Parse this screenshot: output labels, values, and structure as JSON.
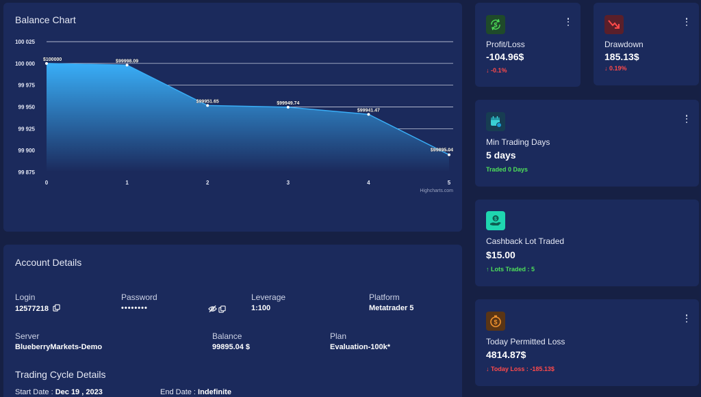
{
  "balance_chart": {
    "title": "Balance Chart",
    "credit": "Highcharts.com"
  },
  "chart_data": {
    "type": "area",
    "x": [
      0,
      1,
      2,
      3,
      4,
      5
    ],
    "values": [
      100000,
      99998.09,
      99951.65,
      99949.74,
      99941.47,
      99895.04
    ],
    "data_labels": [
      "$100000",
      "$99998.09",
      "$99951.65",
      "$99949.74",
      "$99941.47",
      "$99895.04"
    ],
    "y_ticks": [
      "100 025",
      "100 000",
      "99 975",
      "99 950",
      "99 925",
      "99 900",
      "99 875"
    ],
    "x_ticks": [
      "0",
      "1",
      "2",
      "3",
      "4",
      "5"
    ],
    "ylim": [
      99875,
      100025
    ],
    "xlim": [
      0,
      5
    ],
    "grid": true,
    "colors": {
      "top": "#39aef7",
      "bottom": "#1b2a5c"
    }
  },
  "account": {
    "title": "Account Details",
    "login_label": "Login",
    "login_value": "12577218",
    "password_label": "Password",
    "password_value": "••••••••",
    "leverage_label": "Leverage",
    "leverage_value": "1:100",
    "platform_label": "Platform",
    "platform_value": "Metatrader 5",
    "server_label": "Server",
    "server_value": "BlueberryMarkets-Demo",
    "balance_label": "Balance",
    "balance_value": "99895.04 $",
    "plan_label": "Plan",
    "plan_value": "Evaluation-100k*"
  },
  "cycle": {
    "title": "Trading Cycle Details",
    "start_label": "Start Date : ",
    "start_value": "Dec 19 , 2023",
    "end_label": "End Date : ",
    "end_value": "Indefinite"
  },
  "stats": {
    "profit_loss": {
      "label": "Profit/Loss",
      "value": "-104.96$",
      "sub": "-0.1%",
      "icon": "dollar-cycle-icon",
      "color": "#4ee05a"
    },
    "drawdown": {
      "label": "Drawdown",
      "value": "185.13$",
      "sub": "0.19%",
      "icon": "trend-down-icon",
      "color": "#ff4a4a"
    },
    "min_trading_days": {
      "label": "Min Trading Days",
      "value": "5 days",
      "sub": "Traded 0 Days",
      "icon": "calendar-icon",
      "color": "#3ad1d6"
    },
    "cashback": {
      "label": "Cashback Lot Traded",
      "value": "$15.00",
      "sub": "Lots Traded : 5",
      "icon": "hand-coin-icon",
      "color": "#1fd6b0"
    },
    "today_loss": {
      "label": "Today Permitted Loss",
      "value": "4814.87$",
      "sub": "Today Loss : -185.13$",
      "icon": "coin-timer-icon",
      "color": "#f0922f"
    }
  }
}
